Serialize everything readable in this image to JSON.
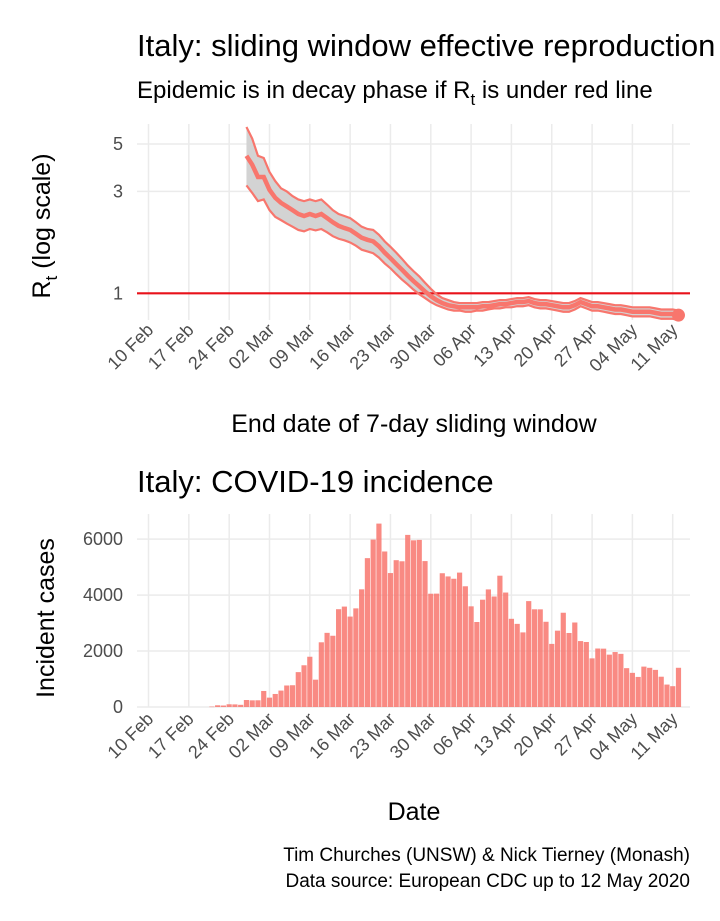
{
  "rt_panel": {
    "title": "Italy: sliding window effective reproduction number",
    "subtitle_before": "Epidemic is in decay phase if R",
    "subtitle_sub": "t",
    "subtitle_after": "  is under red line",
    "ylabel_main": "R",
    "ylabel_sub": "t",
    "ylabel_rest": " (log scale)",
    "xlabel": "End date of 7-day sliding window"
  },
  "incidence_panel": {
    "title": "Italy: COVID-19 incidence",
    "ylabel": "Incident cases",
    "xlabel": "Date"
  },
  "caption": {
    "line1": "Tim Churches (UNSW) & Nick Tierney (Monash)",
    "line2": "Data source: European CDC up to 12 May 2020"
  },
  "colors": {
    "series": "#F8766D",
    "ribbon": "#D3D3D3",
    "threshold": "#E8121A",
    "grid": "#EBEBEB"
  },
  "chart_data": [
    {
      "type": "line",
      "title": "Italy: sliding window effective reproduction number",
      "xlabel": "End date of 7-day sliding window",
      "ylabel": "Rt (log scale)",
      "y_scale": "log",
      "ylim": [
        0.75,
        6.2
      ],
      "xlim": [
        "2020-02-08",
        "2020-05-14"
      ],
      "x_ticks": [
        "10 Feb",
        "17 Feb",
        "24 Feb",
        "02 Mar",
        "09 Mar",
        "16 Mar",
        "23 Mar",
        "30 Mar",
        "06 Apr",
        "13 Apr",
        "20 Apr",
        "27 Apr",
        "04 May",
        "11 May"
      ],
      "x_tick_dates": [
        "2020-02-10",
        "2020-02-17",
        "2020-02-24",
        "2020-03-02",
        "2020-03-09",
        "2020-03-16",
        "2020-03-23",
        "2020-03-30",
        "2020-04-06",
        "2020-04-13",
        "2020-04-20",
        "2020-04-27",
        "2020-05-04",
        "2020-05-11"
      ],
      "y_ticks": [
        1,
        3,
        5
      ],
      "threshold": 1,
      "grid": true,
      "dates": [
        "2020-02-27",
        "2020-02-28",
        "2020-02-29",
        "2020-03-01",
        "2020-03-02",
        "2020-03-03",
        "2020-03-04",
        "2020-03-05",
        "2020-03-06",
        "2020-03-07",
        "2020-03-08",
        "2020-03-09",
        "2020-03-10",
        "2020-03-11",
        "2020-03-12",
        "2020-03-13",
        "2020-03-14",
        "2020-03-15",
        "2020-03-16",
        "2020-03-17",
        "2020-03-18",
        "2020-03-19",
        "2020-03-20",
        "2020-03-21",
        "2020-03-22",
        "2020-03-23",
        "2020-03-24",
        "2020-03-25",
        "2020-03-26",
        "2020-03-27",
        "2020-03-28",
        "2020-03-29",
        "2020-03-30",
        "2020-03-31",
        "2020-04-01",
        "2020-04-02",
        "2020-04-03",
        "2020-04-04",
        "2020-04-05",
        "2020-04-06",
        "2020-04-07",
        "2020-04-08",
        "2020-04-09",
        "2020-04-10",
        "2020-04-11",
        "2020-04-12",
        "2020-04-13",
        "2020-04-14",
        "2020-04-15",
        "2020-04-16",
        "2020-04-17",
        "2020-04-18",
        "2020-04-19",
        "2020-04-20",
        "2020-04-21",
        "2020-04-22",
        "2020-04-23",
        "2020-04-24",
        "2020-04-25",
        "2020-04-26",
        "2020-04-27",
        "2020-04-28",
        "2020-04-29",
        "2020-04-30",
        "2020-05-01",
        "2020-05-02",
        "2020-05-03",
        "2020-05-04",
        "2020-05-05",
        "2020-05-06",
        "2020-05-07",
        "2020-05-08",
        "2020-05-09",
        "2020-05-10",
        "2020-05-11",
        "2020-05-12"
      ],
      "series": [
        {
          "name": "upper",
          "values": [
            6.0,
            5.3,
            4.4,
            4.3,
            3.7,
            3.35,
            3.1,
            3.0,
            2.85,
            2.75,
            2.7,
            2.75,
            2.7,
            2.75,
            2.6,
            2.45,
            2.35,
            2.3,
            2.25,
            2.15,
            2.05,
            2.0,
            1.98,
            1.88,
            1.75,
            1.65,
            1.55,
            1.45,
            1.35,
            1.27,
            1.2,
            1.12,
            1.05,
            0.99,
            0.95,
            0.93,
            0.91,
            0.9,
            0.9,
            0.9,
            0.9,
            0.91,
            0.91,
            0.92,
            0.93,
            0.93,
            0.94,
            0.95,
            0.95,
            0.96,
            0.94,
            0.93,
            0.93,
            0.92,
            0.91,
            0.9,
            0.9,
            0.92,
            0.95,
            0.93,
            0.91,
            0.91,
            0.9,
            0.89,
            0.88,
            0.88,
            0.87,
            0.86,
            0.86,
            0.86,
            0.86,
            0.85,
            0.84,
            0.84,
            0.84,
            0.83
          ]
        },
        {
          "name": "mean",
          "values": [
            4.4,
            4.0,
            3.5,
            3.5,
            3.05,
            2.8,
            2.65,
            2.55,
            2.45,
            2.35,
            2.3,
            2.35,
            2.3,
            2.35,
            2.25,
            2.15,
            2.07,
            2.02,
            1.98,
            1.9,
            1.82,
            1.78,
            1.75,
            1.66,
            1.55,
            1.46,
            1.37,
            1.29,
            1.21,
            1.14,
            1.08,
            1.02,
            0.97,
            0.93,
            0.9,
            0.88,
            0.87,
            0.86,
            0.86,
            0.86,
            0.86,
            0.87,
            0.87,
            0.88,
            0.89,
            0.89,
            0.9,
            0.91,
            0.91,
            0.92,
            0.9,
            0.89,
            0.89,
            0.88,
            0.87,
            0.86,
            0.86,
            0.88,
            0.91,
            0.89,
            0.87,
            0.87,
            0.86,
            0.85,
            0.84,
            0.84,
            0.83,
            0.82,
            0.82,
            0.82,
            0.82,
            0.81,
            0.8,
            0.8,
            0.8,
            0.79
          ]
        },
        {
          "name": "lower",
          "values": [
            3.2,
            2.95,
            2.7,
            2.75,
            2.45,
            2.28,
            2.2,
            2.12,
            2.05,
            1.98,
            1.95,
            2.0,
            1.97,
            2.0,
            1.93,
            1.85,
            1.8,
            1.77,
            1.73,
            1.67,
            1.6,
            1.57,
            1.54,
            1.47,
            1.38,
            1.31,
            1.23,
            1.16,
            1.1,
            1.04,
            0.99,
            0.95,
            0.91,
            0.88,
            0.86,
            0.84,
            0.83,
            0.83,
            0.82,
            0.82,
            0.83,
            0.83,
            0.84,
            0.85,
            0.85,
            0.86,
            0.86,
            0.87,
            0.87,
            0.88,
            0.86,
            0.85,
            0.85,
            0.84,
            0.83,
            0.82,
            0.82,
            0.84,
            0.87,
            0.85,
            0.83,
            0.83,
            0.82,
            0.81,
            0.8,
            0.8,
            0.79,
            0.78,
            0.78,
            0.78,
            0.78,
            0.77,
            0.76,
            0.76,
            0.76,
            0.75
          ]
        }
      ]
    },
    {
      "type": "bar",
      "title": "Italy: COVID-19 incidence",
      "xlabel": "Date",
      "ylabel": "Incident cases",
      "ylim": [
        0,
        6900
      ],
      "xlim": [
        "2020-02-08",
        "2020-05-14"
      ],
      "x_ticks": [
        "10 Feb",
        "17 Feb",
        "24 Feb",
        "02 Mar",
        "09 Mar",
        "16 Mar",
        "23 Mar",
        "30 Mar",
        "06 Apr",
        "13 Apr",
        "20 Apr",
        "27 Apr",
        "04 May",
        "11 May"
      ],
      "x_tick_dates": [
        "2020-02-10",
        "2020-02-17",
        "2020-02-24",
        "2020-03-02",
        "2020-03-09",
        "2020-03-16",
        "2020-03-23",
        "2020-03-30",
        "2020-04-06",
        "2020-04-13",
        "2020-04-20",
        "2020-04-27",
        "2020-05-04",
        "2020-05-11"
      ],
      "y_ticks": [
        0,
        2000,
        4000,
        6000
      ],
      "y_tick_labels": [
        "0",
        "2000",
        "4000",
        "6000"
      ],
      "grid": true,
      "dates": [
        "2020-02-21",
        "2020-02-22",
        "2020-02-23",
        "2020-02-24",
        "2020-02-25",
        "2020-02-26",
        "2020-02-27",
        "2020-02-28",
        "2020-02-29",
        "2020-03-01",
        "2020-03-02",
        "2020-03-03",
        "2020-03-04",
        "2020-03-05",
        "2020-03-06",
        "2020-03-07",
        "2020-03-08",
        "2020-03-09",
        "2020-03-10",
        "2020-03-11",
        "2020-03-12",
        "2020-03-13",
        "2020-03-14",
        "2020-03-15",
        "2020-03-16",
        "2020-03-17",
        "2020-03-18",
        "2020-03-19",
        "2020-03-20",
        "2020-03-21",
        "2020-03-22",
        "2020-03-23",
        "2020-03-24",
        "2020-03-25",
        "2020-03-26",
        "2020-03-27",
        "2020-03-28",
        "2020-03-29",
        "2020-03-30",
        "2020-03-31",
        "2020-04-01",
        "2020-04-02",
        "2020-04-03",
        "2020-04-04",
        "2020-04-05",
        "2020-04-06",
        "2020-04-07",
        "2020-04-08",
        "2020-04-09",
        "2020-04-10",
        "2020-04-11",
        "2020-04-12",
        "2020-04-13",
        "2020-04-14",
        "2020-04-15",
        "2020-04-16",
        "2020-04-17",
        "2020-04-18",
        "2020-04-19",
        "2020-04-20",
        "2020-04-21",
        "2020-04-22",
        "2020-04-23",
        "2020-04-24",
        "2020-04-25",
        "2020-04-26",
        "2020-04-27",
        "2020-04-28",
        "2020-04-29",
        "2020-04-30",
        "2020-05-01",
        "2020-05-02",
        "2020-05-03",
        "2020-05-04",
        "2020-05-05",
        "2020-05-06",
        "2020-05-07",
        "2020-05-08",
        "2020-05-09",
        "2020-05-10",
        "2020-05-11",
        "2020-05-12"
      ],
      "values": [
        14,
        62,
        53,
        97,
        93,
        78,
        250,
        238,
        240,
        573,
        335,
        466,
        587,
        769,
        778,
        1247,
        1492,
        1797,
        977,
        2313,
        2651,
        2547,
        3497,
        3590,
        3233,
        3526,
        4207,
        5322,
        5986,
        6557,
        5560,
        4789,
        5249,
        5210,
        6153,
        5959,
        5974,
        5217,
        4050,
        4053,
        4782,
        4668,
        4585,
        4805,
        4316,
        3599,
        3039,
        3836,
        4204,
        3951,
        4694,
        4092,
        3153,
        2972,
        2667,
        3786,
        3493,
        3491,
        3047,
        2256,
        2729,
        3370,
        2646,
        3021,
        2357,
        2324,
        1739,
        2091,
        2086,
        1872,
        1965,
        1900,
        1389,
        1221,
        1075,
        1444,
        1401,
        1327,
        1083,
        802,
        744,
        1402
      ]
    }
  ]
}
